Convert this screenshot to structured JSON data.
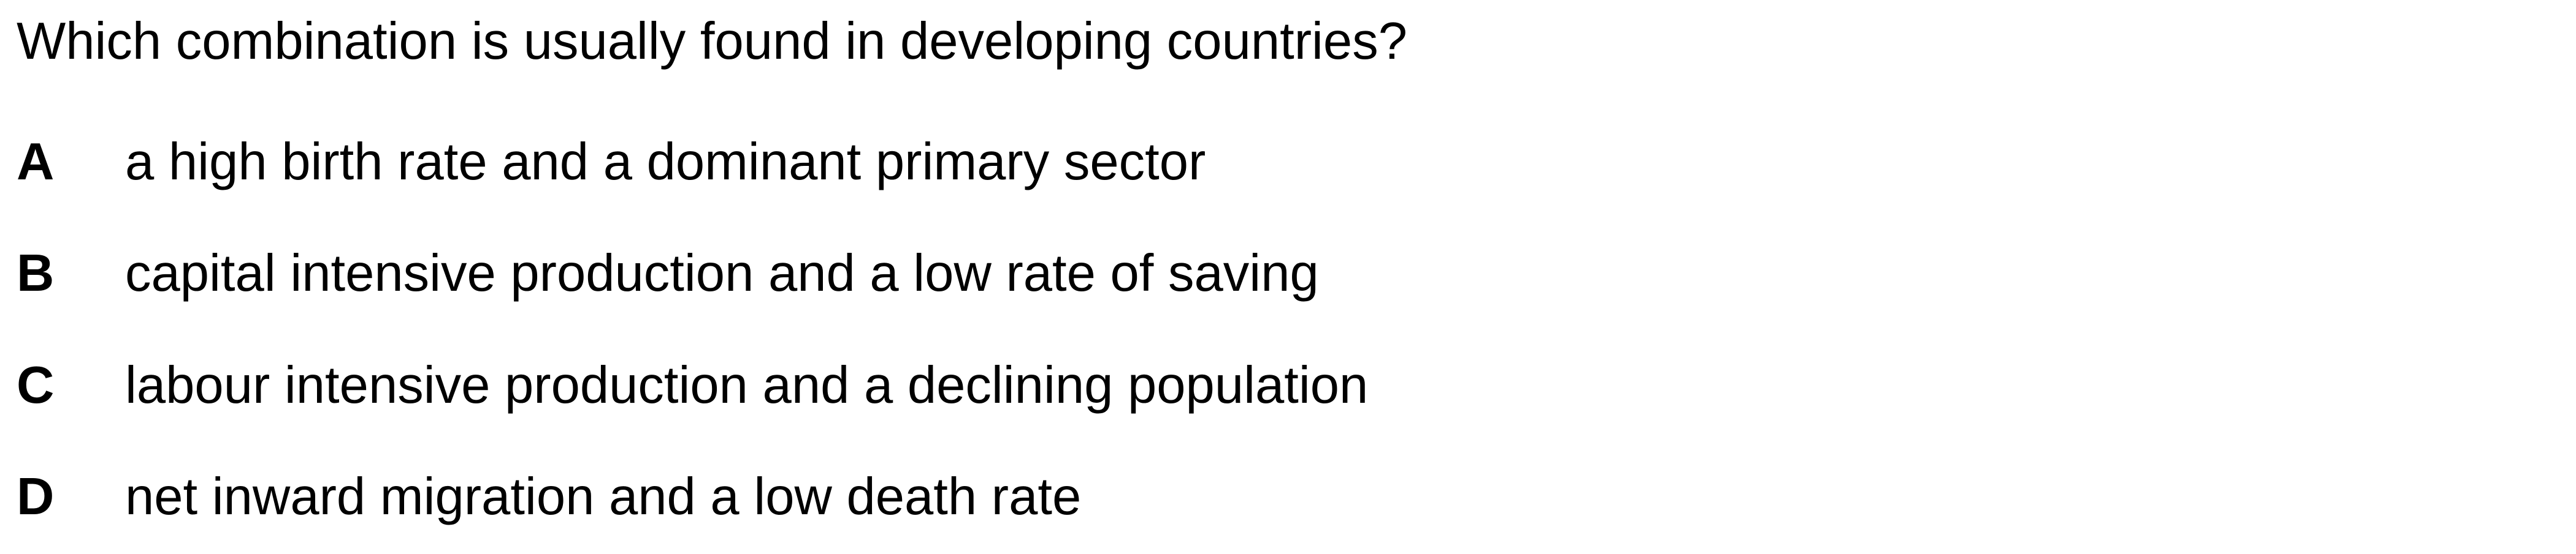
{
  "question": {
    "text": "Which combination is usually found in developing countries?"
  },
  "options": [
    {
      "letter": "A",
      "text": "a high birth rate and a dominant primary sector"
    },
    {
      "letter": "B",
      "text": "capital intensive production and a low rate of saving"
    },
    {
      "letter": "C",
      "text": "labour intensive production and a declining population"
    },
    {
      "letter": "D",
      "text": "net inward migration and a low death rate"
    }
  ]
}
